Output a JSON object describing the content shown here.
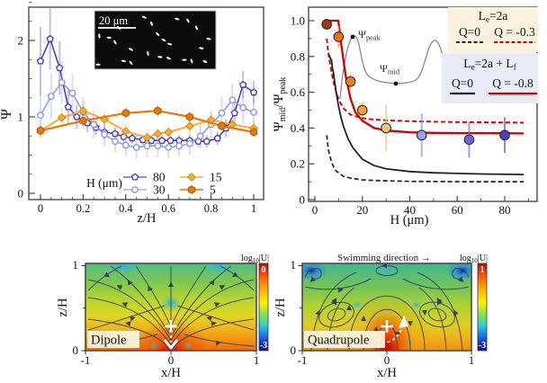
{
  "figure": {
    "bg": "#ffffff"
  },
  "chart_data": [
    {
      "id": "psi_vs_z",
      "type": "line",
      "xlabel": "z/H",
      "ylabel": "Ψ",
      "xlim": [
        -0.03,
        1.05
      ],
      "ylim": [
        -0.12,
        2.5
      ],
      "xticks": [
        0,
        0.2,
        0.4,
        0.6,
        0.8,
        1
      ],
      "xtick_labels": [
        "0",
        "0.2",
        "0.4",
        "0.6",
        "0.8",
        "1"
      ],
      "yticks": [
        0,
        1,
        2
      ],
      "ytick_labels": [
        "0",
        "1",
        "2"
      ],
      "legend_title": "H (μm)",
      "series": [
        {
          "name": "80",
          "color": "#4038b8",
          "edge": "#2a2489",
          "marker": "open-pentagon",
          "lw": 1.5,
          "x": [
            0,
            0.045,
            0.09,
            0.13,
            0.17,
            0.22,
            0.26,
            0.3,
            0.35,
            0.39,
            0.43,
            0.48,
            0.52,
            0.57,
            0.61,
            0.65,
            0.7,
            0.74,
            0.78,
            0.83,
            0.87,
            0.91,
            0.95,
            1.0
          ],
          "y": [
            1.73,
            2.02,
            1.64,
            1.13,
            1.0,
            0.92,
            0.86,
            0.8,
            0.78,
            0.74,
            0.72,
            0.7,
            0.69,
            0.69,
            0.69,
            0.69,
            0.69,
            0.68,
            0.68,
            0.72,
            0.85,
            1.05,
            1.42,
            1.32
          ],
          "err": [
            0.45,
            0.4,
            0.35,
            0.22,
            0.15,
            0.12,
            0.1,
            0.09,
            0.08,
            0.08,
            0.07,
            0.07,
            0.07,
            0.07,
            0.07,
            0.07,
            0.07,
            0.07,
            0.08,
            0.09,
            0.12,
            0.15,
            0.18,
            0.15
          ]
        },
        {
          "name": "30",
          "color": "#8d97e3",
          "edge": "#5f6cc9",
          "marker": "open-circle",
          "lw": 1.5,
          "x": [
            0,
            0.05,
            0.1,
            0.15,
            0.2,
            0.25,
            0.3,
            0.35,
            0.4,
            0.45,
            0.5,
            0.55,
            0.6,
            0.65,
            0.7,
            0.75,
            0.8,
            0.85,
            0.9,
            0.95,
            1.0
          ],
          "y": [
            1.02,
            1.27,
            1.45,
            1.31,
            1.06,
            0.9,
            0.77,
            0.68,
            0.63,
            0.6,
            0.62,
            0.62,
            0.6,
            0.62,
            0.65,
            0.75,
            0.9,
            1.05,
            1.22,
            1.12,
            1.06
          ],
          "err": [
            0.28,
            0.3,
            0.28,
            0.25,
            0.2,
            0.18,
            0.15,
            0.14,
            0.14,
            0.15,
            0.15,
            0.15,
            0.14,
            0.14,
            0.15,
            0.16,
            0.18,
            0.2,
            0.22,
            0.2,
            0.18
          ]
        },
        {
          "name": "15",
          "color": "#f5ad38",
          "edge": "#d8890f",
          "marker": "filled-diamond",
          "lw": 2.0,
          "x": [
            0,
            0.1,
            0.2,
            0.3,
            0.4,
            0.5,
            0.55,
            0.6,
            0.7,
            0.8,
            0.9,
            1.0
          ],
          "y": [
            0.82,
            0.99,
            1.08,
            0.97,
            0.81,
            0.73,
            0.78,
            0.8,
            0.88,
            0.96,
            0.9,
            0.85
          ],
          "err": [
            0.1,
            0.12,
            0.12,
            0.1,
            0.1,
            0.08,
            0.08,
            0.08,
            0.1,
            0.1,
            0.1,
            0.1
          ]
        },
        {
          "name": "5",
          "color": "#e5790e",
          "edge": "#b25800",
          "marker": "filled-hexagon",
          "lw": 2.2,
          "x": [
            0,
            0.2,
            0.4,
            0.55,
            0.7,
            0.85,
            1.0
          ],
          "y": [
            0.82,
            0.95,
            1.05,
            1.08,
            1.0,
            0.88,
            0.8
          ],
          "err": [
            0.06,
            0.07,
            0.08,
            0.08,
            0.07,
            0.07,
            0.06
          ]
        }
      ],
      "inset": {
        "scale_label": "20 μm",
        "bacteria": [
          [
            41,
            11,
            20
          ],
          [
            77,
            17,
            60
          ],
          [
            52,
            40,
            45
          ],
          [
            57,
            50,
            30
          ],
          [
            62,
            57,
            15
          ],
          [
            12,
            46,
            5
          ],
          [
            17,
            54,
            60
          ],
          [
            4,
            43,
            85
          ],
          [
            94,
            48,
            10
          ],
          [
            30,
            66,
            30
          ],
          [
            54,
            79,
            5
          ],
          [
            61,
            81,
            25
          ],
          [
            24,
            86,
            10
          ],
          [
            30,
            89,
            50
          ],
          [
            74,
            84,
            0
          ],
          [
            80,
            86,
            70
          ],
          [
            91,
            87,
            25
          ],
          [
            3,
            92,
            0
          ],
          [
            84,
            29,
            65
          ],
          [
            68,
            14,
            15
          ],
          [
            44,
            73,
            80
          ],
          [
            20,
            29,
            40
          ],
          [
            88,
            64,
            10
          ],
          [
            47,
            22,
            70
          ]
        ]
      }
    },
    {
      "id": "ratio_vs_H",
      "type": "scatter",
      "xlabel": "H (μm)",
      "ylabel_parts": [
        "Ψ",
        "mid",
        "/Ψ",
        "peak"
      ],
      "xlim": [
        -2.5,
        93.5
      ],
      "ylim": [
        0,
        1.085
      ],
      "xticks": [
        0,
        20,
        40,
        60,
        80
      ],
      "xtick_labels": [
        "0",
        "20",
        "40",
        "60",
        "80"
      ],
      "yticks": [
        0,
        0.2,
        0.4,
        0.6,
        0.8,
        1.0
      ],
      "ytick_labels": [
        "0",
        "0.2",
        "0.4",
        "0.6",
        "0.8",
        "1.0"
      ],
      "points": {
        "x": [
          5,
          10,
          15,
          20,
          30,
          45,
          65,
          80
        ],
        "y": [
          0.98,
          0.91,
          0.66,
          0.5,
          0.4,
          0.36,
          0.335,
          0.36
        ],
        "err": [
          0.03,
          0.06,
          0.04,
          0.04,
          0.13,
          0.12,
          0.1,
          0.1
        ],
        "colors": [
          "#9c3c10",
          "#e07818",
          "#e8831c",
          "#f0a23a",
          "#f5c475",
          "#97a3e8",
          "#6a67d2",
          "#4b41bd"
        ],
        "err_colors": [
          "#f0b060",
          "#f0a040",
          "#f0a040",
          "#f5b860",
          "#f7c980",
          "#8e9cf0",
          "#7c7ce0",
          "#6a60d0"
        ]
      },
      "curves": [
        {
          "name": "Le=2a Q=0",
          "style": "dashed",
          "color": "#222222",
          "width": 1.7,
          "x": [
            5,
            5.5,
            6,
            7,
            8,
            9,
            10,
            12,
            15,
            20,
            25,
            30,
            40,
            50,
            60,
            70,
            80,
            88
          ],
          "y": [
            0.36,
            0.3,
            0.26,
            0.21,
            0.18,
            0.16,
            0.15,
            0.13,
            0.12,
            0.11,
            0.107,
            0.105,
            0.102,
            0.101,
            0.1,
            0.1,
            0.1,
            0.1
          ]
        },
        {
          "name": "Le=2a Q=-0.3",
          "style": "dashed",
          "color": "#d40000",
          "width": 1.9,
          "x": [
            5,
            5.5,
            6,
            7,
            8,
            9,
            10,
            12,
            15,
            20,
            25,
            30,
            40,
            50,
            60,
            70,
            80,
            88
          ],
          "y": [
            0.9,
            0.84,
            0.79,
            0.71,
            0.65,
            0.6,
            0.56,
            0.51,
            0.475,
            0.455,
            0.447,
            0.443,
            0.438,
            0.435,
            0.433,
            0.432,
            0.431,
            0.43
          ]
        },
        {
          "name": "Le=2a+Lf Q=0",
          "style": "solid",
          "color": "#222222",
          "width": 1.8,
          "x": [
            6,
            6.5,
            7,
            7.3,
            7.8,
            8.3,
            9,
            10,
            11,
            12,
            14,
            16,
            20,
            25,
            30,
            40,
            50,
            60,
            70,
            80,
            88
          ],
          "y": [
            0.81,
            0.79,
            0.78,
            0.74,
            0.71,
            0.66,
            0.6,
            0.52,
            0.46,
            0.41,
            0.34,
            0.29,
            0.225,
            0.19,
            0.172,
            0.157,
            0.15,
            0.146,
            0.143,
            0.141,
            0.14
          ]
        },
        {
          "name": "Le=2a+Lf Q=-0.8",
          "style": "solid",
          "color": "#d40000",
          "width": 2.3,
          "x": [
            5,
            6,
            7,
            8,
            9,
            9.8,
            10.2,
            10.6,
            11,
            12,
            13,
            15,
            17,
            20,
            25,
            30,
            40,
            50,
            60,
            70,
            80,
            88
          ],
          "y": [
            1.0,
            1.0,
            1.0,
            1.0,
            1.0,
            1.0,
            0.97,
            0.92,
            0.88,
            0.78,
            0.69,
            0.565,
            0.49,
            0.44,
            0.4,
            0.386,
            0.376,
            0.373,
            0.372,
            0.372,
            0.371,
            0.37
          ]
        }
      ],
      "legend_boxes": [
        {
          "bg": "#fbf1dd",
          "title_parts": {
            "t1": "L",
            "s1": "e",
            "t2": "=2a"
          },
          "entries": [
            {
              "label": "Q=0",
              "line": "dashed",
              "color": "#222222"
            },
            {
              "label": "Q = -0.3",
              "line": "dashed",
              "color": "#d40000"
            }
          ]
        },
        {
          "bg": "#e9ebf7",
          "title_parts": {
            "t1": "L",
            "s1": "e",
            "t2": "=2a + L",
            "s2": "f"
          },
          "entries": [
            {
              "label": "Q=0",
              "line": "solid",
              "color": "#222222"
            },
            {
              "label": "Q = -0.8",
              "line": "solid",
              "color": "#d40000"
            }
          ]
        }
      ],
      "annotations": {
        "peak_base": "Ψ",
        "peak_sub": "peak",
        "mid_base": "Ψ",
        "mid_sub": "mid"
      }
    },
    {
      "id": "dipole_flow",
      "type": "heatmap",
      "label": "Dipole",
      "xlabel": "x/H",
      "ylabel": "z/H",
      "xtick_labels": [
        "-1",
        "0",
        "1"
      ],
      "ytick_labels": [
        "0",
        "1"
      ],
      "colormap": "jet",
      "colorbar": {
        "label_base": "log",
        "label_sub": "10",
        "label_rest": "|U|",
        "top": "0",
        "bottom": "-3"
      },
      "swimmer_marker": "cross-with-down-arrow"
    },
    {
      "id": "quadrupole_flow",
      "type": "heatmap",
      "label": "Quadrupole",
      "title": "Swimming direction →",
      "xlabel": "x/H",
      "ylabel": "z/H",
      "xtick_labels": [
        "-1",
        "0",
        "1"
      ],
      "ytick_labels": [
        "0",
        "1"
      ],
      "colormap": "jet",
      "colorbar": {
        "label_base": "log",
        "label_sub": "10",
        "label_rest": "|U|",
        "top": "1",
        "bottom": "-3"
      },
      "swimmer_marker": "cross-with-curved-arrow"
    }
  ]
}
